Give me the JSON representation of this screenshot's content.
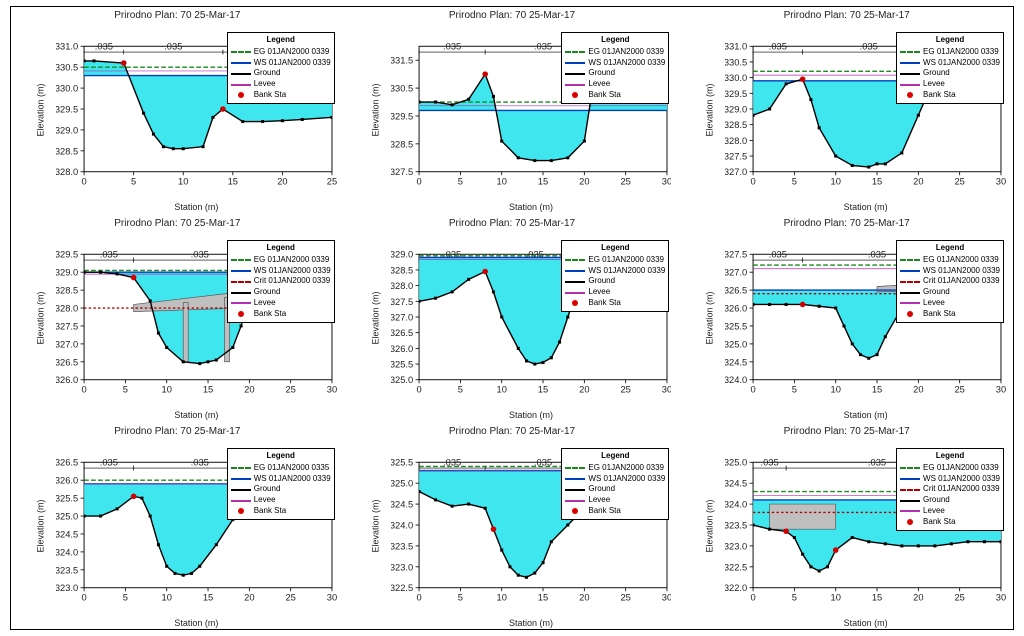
{
  "global": {
    "title_template": "{river}   Plan: {plan}   {date}",
    "river": "Prirodno",
    "plan": "70",
    "date": "25-Mar-17",
    "xlabel": "Station (m)",
    "ylabel": "Elevation (m)",
    "legend_title": "Legend",
    "water_fill": "#3fe6ee",
    "water_stroke": "#00b6c4",
    "eg_color": "#1a8a1a",
    "ws_color": "#0040c0",
    "crit_color": "#b00000",
    "ground_color": "#000000",
    "levee_color": "#b030b0",
    "bank_color": "#d00000",
    "tick_color": "#000",
    "axis_color": "#000",
    "grid_off": true,
    "bg": "#ffffff",
    "bridge_fill": "#bfbfbf",
    "manning_values": [
      ".035",
      ".035",
      ".035"
    ],
    "line_width": 1.2,
    "marker_size": 2.4,
    "font_size_axis": 8,
    "font_size_title": 10
  },
  "legend_variants": {
    "std": [
      "EG 01JAN2000 0339",
      "WS 01JAN2000 0339",
      "Ground",
      "Levee",
      "Bank Sta"
    ],
    "with_crit": [
      "EG 01JAN2000 0339",
      "WS 01JAN2000 0339",
      "Crit 01JAN2000 0339",
      "Ground",
      "Levee",
      "Bank Sta"
    ],
    "std_0335": [
      "EG 01JAN2000 0335",
      "WS 01JAN2000 0339",
      "Ground",
      "Levee",
      "Bank Sta"
    ]
  },
  "panels": [
    {
      "legend": "std",
      "xlim": [
        0,
        25
      ],
      "ylim": [
        328.0,
        331.0
      ],
      "ytick_step": 0.5,
      "xtick_step": 5,
      "manning_spans": [
        [
          0,
          4
        ],
        [
          4,
          14
        ],
        [
          14,
          25
        ]
      ],
      "ws": 330.3,
      "eg": 330.5,
      "ground": [
        [
          0,
          330.65
        ],
        [
          1,
          330.65
        ],
        [
          4,
          330.6
        ],
        [
          6,
          329.4
        ],
        [
          7,
          328.9
        ],
        [
          8,
          328.6
        ],
        [
          9,
          328.55
        ],
        [
          10,
          328.55
        ],
        [
          12,
          328.6
        ],
        [
          13,
          329.3
        ],
        [
          14,
          329.5
        ],
        [
          16,
          329.2
        ],
        [
          18,
          329.2
        ],
        [
          20,
          329.22
        ],
        [
          22,
          329.25
        ],
        [
          25,
          329.3
        ]
      ],
      "banks": [
        [
          4,
          330.6
        ],
        [
          14,
          329.5
        ]
      ]
    },
    {
      "legend": "std",
      "xlim": [
        0,
        30
      ],
      "ylim": [
        327.5,
        332.0
      ],
      "ytick_step": 1,
      "xtick_step": 5,
      "manning_spans": [
        [
          0,
          8
        ],
        [
          8,
          22
        ],
        [
          22,
          30
        ]
      ],
      "ws": 329.7,
      "eg": 330.0,
      "ground": [
        [
          0,
          330.0
        ],
        [
          2,
          330.0
        ],
        [
          4,
          329.9
        ],
        [
          6,
          330.1
        ],
        [
          8,
          331.0
        ],
        [
          9,
          330.2
        ],
        [
          10,
          328.6
        ],
        [
          12,
          328.0
        ],
        [
          14,
          327.9
        ],
        [
          16,
          327.9
        ],
        [
          18,
          328.0
        ],
        [
          20,
          328.6
        ],
        [
          21,
          330.5
        ],
        [
          22,
          331.2
        ],
        [
          24,
          331.6
        ],
        [
          26,
          331.7
        ],
        [
          28,
          331.8
        ],
        [
          30,
          331.8
        ]
      ],
      "banks": [
        [
          8,
          331.0
        ],
        [
          22,
          331.2
        ]
      ]
    },
    {
      "legend": "std",
      "xlim": [
        0,
        30
      ],
      "ylim": [
        327.0,
        331.0
      ],
      "ytick_step": 0.5,
      "xtick_step": 5,
      "manning_spans": [
        [
          0,
          6
        ],
        [
          6,
          22
        ],
        [
          22,
          30
        ]
      ],
      "ws": 329.9,
      "eg": 330.2,
      "ground": [
        [
          0,
          328.8
        ],
        [
          2,
          329.0
        ],
        [
          4,
          329.8
        ],
        [
          6,
          329.95
        ],
        [
          7,
          329.3
        ],
        [
          8,
          328.4
        ],
        [
          10,
          327.5
        ],
        [
          12,
          327.2
        ],
        [
          14,
          327.15
        ],
        [
          15,
          327.25
        ],
        [
          16,
          327.25
        ],
        [
          18,
          327.6
        ],
        [
          20,
          328.8
        ],
        [
          22,
          330.0
        ],
        [
          24,
          330.15
        ],
        [
          26,
          330.12
        ],
        [
          28,
          330.2
        ],
        [
          30,
          330.25
        ]
      ],
      "banks": [
        [
          6,
          329.95
        ],
        [
          22,
          330.0
        ]
      ]
    },
    {
      "legend": "with_crit",
      "xlim": [
        0,
        30
      ],
      "ylim": [
        326.0,
        329.5
      ],
      "ytick_step": 0.5,
      "xtick_step": 5,
      "manning_spans": [
        [
          0,
          6
        ],
        [
          6,
          22
        ],
        [
          22,
          30
        ]
      ],
      "ws": 329.0,
      "eg": 329.05,
      "crit": 328.0,
      "bridge": {
        "poly": [
          [
            6,
            328.1
          ],
          [
            19,
            328.45
          ],
          [
            19,
            328.0
          ],
          [
            6,
            327.9
          ]
        ],
        "piers": [
          [
            12,
            326.5,
            12.6,
            328.15
          ],
          [
            17,
            326.5,
            17.6,
            328.3
          ]
        ]
      },
      "ground": [
        [
          0,
          329.0
        ],
        [
          2,
          329.0
        ],
        [
          4,
          328.95
        ],
        [
          6,
          328.85
        ],
        [
          8,
          328.2
        ],
        [
          9,
          327.3
        ],
        [
          10,
          326.9
        ],
        [
          12,
          326.5
        ],
        [
          14,
          326.45
        ],
        [
          15,
          326.5
        ],
        [
          16,
          326.55
        ],
        [
          18,
          326.9
        ],
        [
          19,
          327.5
        ],
        [
          20,
          328.3
        ],
        [
          22,
          328.4
        ],
        [
          24,
          328.5
        ],
        [
          26,
          328.6
        ],
        [
          28,
          328.6
        ],
        [
          30,
          328.6
        ]
      ],
      "banks": [
        [
          6,
          328.85
        ],
        [
          20,
          328.3
        ]
      ]
    },
    {
      "legend": "std",
      "xlim": [
        0,
        30
      ],
      "ylim": [
        325.0,
        329.0
      ],
      "ytick_step": 0.5,
      "xtick_step": 5,
      "manning_spans": [
        [
          0,
          8
        ],
        [
          8,
          20
        ],
        [
          20,
          30
        ]
      ],
      "ws": 328.9,
      "eg": 328.95,
      "ground": [
        [
          0,
          327.5
        ],
        [
          2,
          327.6
        ],
        [
          4,
          327.8
        ],
        [
          6,
          328.2
        ],
        [
          8,
          328.45
        ],
        [
          9,
          327.8
        ],
        [
          10,
          327.0
        ],
        [
          12,
          326.0
        ],
        [
          13,
          325.6
        ],
        [
          14,
          325.5
        ],
        [
          15,
          325.55
        ],
        [
          16,
          325.7
        ],
        [
          17,
          326.2
        ],
        [
          18,
          327.0
        ],
        [
          19,
          327.8
        ],
        [
          20,
          328.3
        ],
        [
          22,
          327.9
        ],
        [
          24,
          327.6
        ],
        [
          26,
          327.5
        ],
        [
          28,
          327.5
        ],
        [
          30,
          327.5
        ]
      ],
      "banks": [
        [
          8,
          328.45
        ],
        [
          20,
          328.3
        ]
      ]
    },
    {
      "legend": "with_crit",
      "xlim": [
        0,
        30
      ],
      "ylim": [
        324.0,
        327.5
      ],
      "ytick_step": 0.5,
      "xtick_step": 5,
      "manning_spans": [
        [
          0,
          6
        ],
        [
          6,
          24
        ],
        [
          24,
          30
        ]
      ],
      "ws": 326.5,
      "eg": 327.2,
      "crit": 326.4,
      "bridge": {
        "poly": [
          [
            15,
            326.6
          ],
          [
            22,
            326.7
          ],
          [
            22,
            326.5
          ],
          [
            15,
            326.45
          ]
        ]
      },
      "ground": [
        [
          0,
          326.1
        ],
        [
          2,
          326.1
        ],
        [
          4,
          326.1
        ],
        [
          6,
          326.1
        ],
        [
          8,
          326.05
        ],
        [
          10,
          326.0
        ],
        [
          11,
          325.5
        ],
        [
          12,
          325.0
        ],
        [
          13,
          324.7
        ],
        [
          14,
          324.6
        ],
        [
          15,
          324.7
        ],
        [
          16,
          325.2
        ],
        [
          18,
          326.0
        ],
        [
          19,
          326.2
        ],
        [
          20,
          326.25
        ],
        [
          22,
          326.2
        ],
        [
          24,
          326.25
        ],
        [
          26,
          326.2
        ],
        [
          28,
          326.2
        ],
        [
          30,
          326.2
        ]
      ],
      "banks": [
        [
          6,
          326.1
        ],
        [
          24,
          326.25
        ]
      ]
    },
    {
      "legend": "std_0335",
      "xlim": [
        0,
        30
      ],
      "ylim": [
        323.0,
        326.5
      ],
      "ytick_step": 0.5,
      "xtick_step": 5,
      "manning_spans": [
        [
          0,
          6
        ],
        [
          6,
          22
        ],
        [
          22,
          30
        ]
      ],
      "ws": 325.9,
      "eg": 326.0,
      "ground": [
        [
          0,
          325.0
        ],
        [
          2,
          325.0
        ],
        [
          4,
          325.2
        ],
        [
          6,
          325.55
        ],
        [
          7,
          325.5
        ],
        [
          8,
          325.0
        ],
        [
          9,
          324.2
        ],
        [
          10,
          323.6
        ],
        [
          11,
          323.4
        ],
        [
          12,
          323.35
        ],
        [
          13,
          323.4
        ],
        [
          14,
          323.6
        ],
        [
          16,
          324.2
        ],
        [
          18,
          324.9
        ],
        [
          20,
          325.3
        ],
        [
          22,
          325.5
        ],
        [
          24,
          325.8
        ],
        [
          26,
          326.0
        ],
        [
          28,
          326.1
        ],
        [
          30,
          326.2
        ]
      ],
      "banks": [
        [
          6,
          325.55
        ],
        [
          22,
          325.5
        ]
      ]
    },
    {
      "legend": "std",
      "xlim": [
        0,
        30
      ],
      "ylim": [
        322.5,
        325.5
      ],
      "ytick_step": 0.5,
      "xtick_step": 5,
      "manning_spans": [
        [
          0,
          8
        ],
        [
          8,
          22
        ],
        [
          22,
          30
        ]
      ],
      "ws": 325.3,
      "eg": 325.4,
      "ground": [
        [
          0,
          324.8
        ],
        [
          2,
          324.6
        ],
        [
          4,
          324.45
        ],
        [
          6,
          324.5
        ],
        [
          8,
          324.4
        ],
        [
          9,
          323.9
        ],
        [
          10,
          323.4
        ],
        [
          11,
          323.0
        ],
        [
          12,
          322.8
        ],
        [
          13,
          322.75
        ],
        [
          14,
          322.85
        ],
        [
          15,
          323.1
        ],
        [
          16,
          323.6
        ],
        [
          18,
          324.0
        ],
        [
          20,
          324.4
        ],
        [
          22,
          324.6
        ],
        [
          24,
          324.8
        ],
        [
          26,
          325.0
        ],
        [
          28,
          325.1
        ],
        [
          30,
          325.15
        ]
      ],
      "banks": [
        [
          9,
          323.9
        ],
        [
          22,
          324.6
        ]
      ]
    },
    {
      "legend": "with_crit",
      "xlim": [
        0,
        30
      ],
      "ylim": [
        322.0,
        325.0
      ],
      "ytick_step": 0.5,
      "xtick_step": 5,
      "manning_spans": [
        [
          0,
          4
        ],
        [
          4,
          26
        ],
        [
          26,
          30
        ]
      ],
      "ws": 324.1,
      "eg": 324.3,
      "crit": 323.8,
      "bridge": {
        "poly": [
          [
            2,
            324.0
          ],
          [
            10,
            324.0
          ],
          [
            10,
            323.4
          ],
          [
            2,
            323.4
          ]
        ]
      },
      "ground": [
        [
          0,
          323.5
        ],
        [
          2,
          323.4
        ],
        [
          4,
          323.35
        ],
        [
          5,
          323.2
        ],
        [
          6,
          322.8
        ],
        [
          7,
          322.5
        ],
        [
          8,
          322.4
        ],
        [
          9,
          322.5
        ],
        [
          10,
          322.9
        ],
        [
          12,
          323.2
        ],
        [
          14,
          323.1
        ],
        [
          16,
          323.05
        ],
        [
          18,
          323.0
        ],
        [
          20,
          323.0
        ],
        [
          22,
          323.0
        ],
        [
          24,
          323.05
        ],
        [
          26,
          323.1
        ],
        [
          28,
          323.1
        ],
        [
          30,
          323.1
        ]
      ],
      "banks": [
        [
          4,
          323.35
        ],
        [
          10,
          322.9
        ]
      ]
    }
  ]
}
